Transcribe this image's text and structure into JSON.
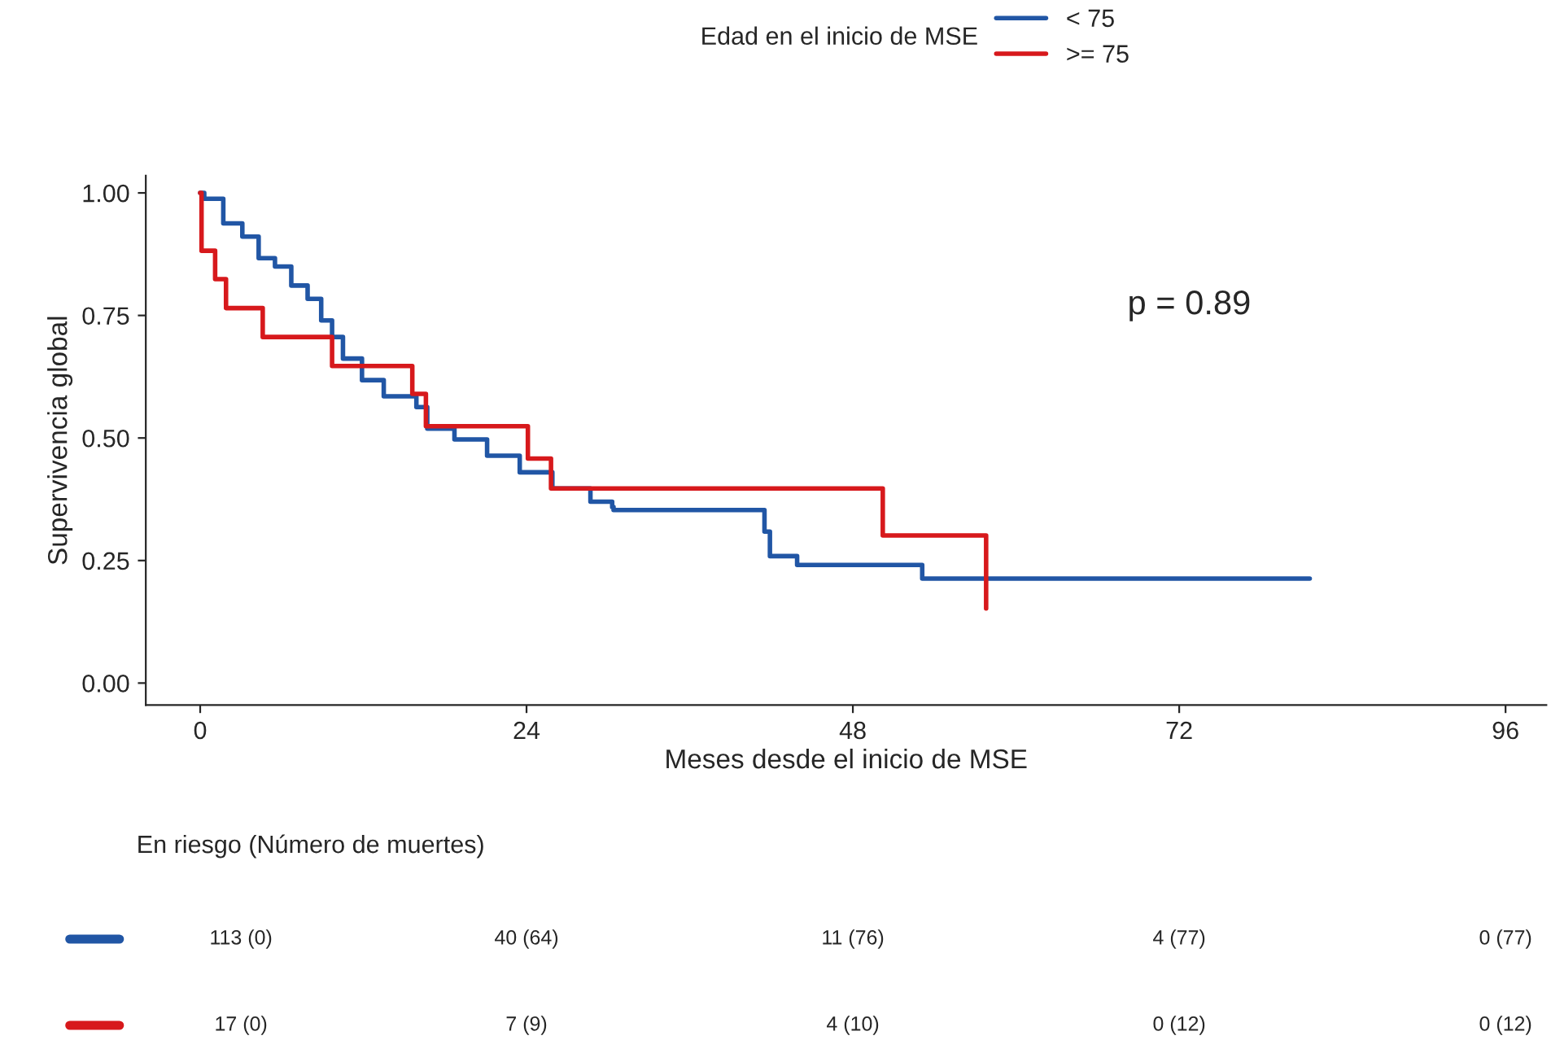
{
  "chart_data": {
    "type": "step",
    "xlabel": "Meses desde el inicio de MSE",
    "ylabel": "Supervivencia global",
    "legend_title": "Edad en el inicio de MSE",
    "legend": "top",
    "xlim": [
      -4,
      99
    ],
    "xticks": [
      0,
      24,
      48,
      72,
      96
    ],
    "ylim": [
      -0.045,
      1.035
    ],
    "yticks": [
      {
        "value": 0,
        "label": "0.00"
      },
      {
        "value": 0.25,
        "label": "0.25"
      },
      {
        "value": 0.5,
        "label": "0.50"
      },
      {
        "value": 0.75,
        "label": "0.75"
      },
      {
        "value": 1,
        "label": "1.00"
      }
    ],
    "grid": false,
    "series": [
      {
        "name": "< 75",
        "color": "#2156a5",
        "x": [
          0,
          0.3,
          1.7,
          3.1,
          4.3,
          5.5,
          6.7,
          7.9,
          8.9,
          9.7,
          10.5,
          11.9,
          13.5,
          15.9,
          16.7,
          18.7,
          21.1,
          23.5,
          25.9,
          28.7,
          30.3,
          30.4,
          41.5,
          41.9,
          43.9,
          53.1,
          81.6
        ],
        "values": [
          1.0,
          0.988,
          0.938,
          0.911,
          0.867,
          0.85,
          0.811,
          0.784,
          0.74,
          0.706,
          0.662,
          0.618,
          0.585,
          0.563,
          0.519,
          0.497,
          0.464,
          0.43,
          0.397,
          0.37,
          0.359,
          0.353,
          0.309,
          0.259,
          0.241,
          0.213,
          0.213
        ]
      },
      {
        "name": ">= 75",
        "color": "#d7191c",
        "x": [
          0,
          0.1,
          1.1,
          1.9,
          4.6,
          9.7,
          15.6,
          16.6,
          24.1,
          25.8,
          50.2,
          57.8,
          57.8
        ],
        "values": [
          1.0,
          0.882,
          0.824,
          0.765,
          0.706,
          0.647,
          0.59,
          0.524,
          0.458,
          0.397,
          0.301,
          0.152,
          0.152
        ]
      }
    ],
    "annotations": [
      "p = 0.89",
      "En riesgo (Número de muertes)",
      "113 (0)",
      "40 (64)",
      "11 (76)",
      "4 (77)",
      "0 (77)",
      "17 (0)",
      "7 (9)",
      "4 (10)",
      "0 (12)",
      "0 (12)"
    ]
  }
}
